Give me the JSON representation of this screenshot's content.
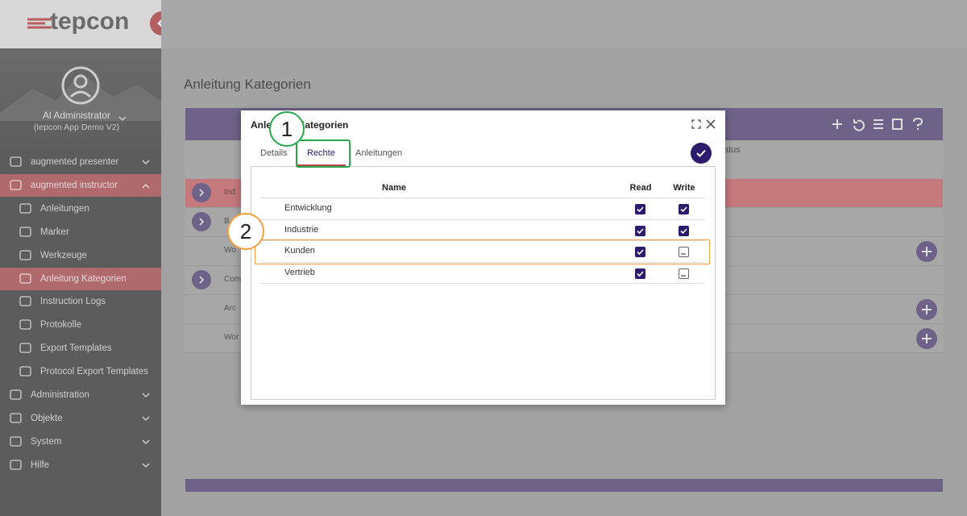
{
  "brand": "tepcon",
  "user": {
    "name": "Al Administrator",
    "tenant": "(tepcon App Demo V2)"
  },
  "nav": [
    "augmented presenter",
    "augmented instructor",
    "Anleitungen",
    "Marker",
    "Werkzeuge",
    "Anleitung Kategorien",
    "Instruction Logs",
    "Protokolle",
    "Export Templates",
    "Protocol Export Templates",
    "Administration",
    "Objekte",
    "System",
    "Hilfe"
  ],
  "page_title": "Anleitung Kategorien",
  "background_table": {
    "column_fragment": "atus",
    "row_fragments": [
      "Ind",
      "B",
      "Wo",
      "Com",
      "Arc",
      "Wor"
    ]
  },
  "dialog": {
    "title": "Anleitung Kategorien",
    "tabs": [
      "Details",
      "Rechte",
      "Anleitungen"
    ],
    "active_tab": "Rechte",
    "table": {
      "header": [
        "Name",
        "Read",
        "Write"
      ],
      "rows": [
        [
          "Entwicklung",
          "checked",
          "checked"
        ],
        [
          "Industrie",
          "checked",
          "checked"
        ],
        [
          "Kunden",
          "checked",
          "indeterminate"
        ],
        [
          "Vertrieb",
          "checked",
          "indeterminate"
        ]
      ]
    }
  },
  "callouts": [
    "1",
    "2"
  ]
}
